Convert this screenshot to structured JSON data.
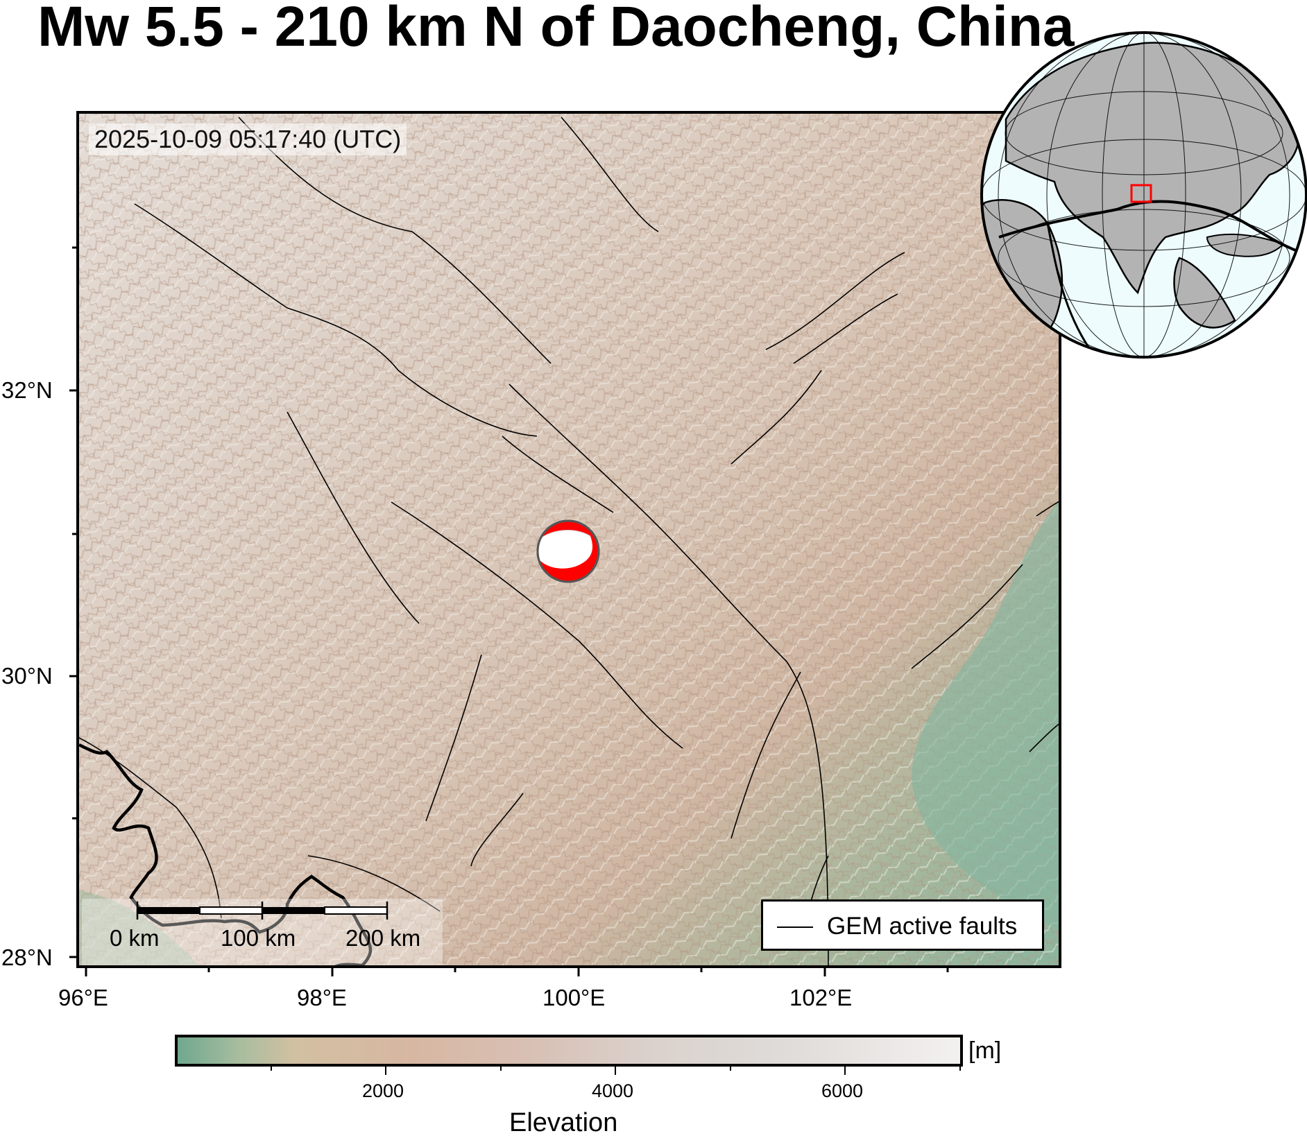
{
  "title": "Mw 5.5 - 210 km N of Daocheng, China",
  "datetime": "2025-10-09 05:17:40 (UTC)",
  "axes": {
    "lat_labels": [
      "32°N",
      "30°N",
      "28°N"
    ],
    "lon_labels": [
      "96°E",
      "98°E",
      "100°E",
      "102°E"
    ]
  },
  "legend": {
    "faults_label": "GEM active faults"
  },
  "scalebar": {
    "labels": [
      "0 km",
      "100 km",
      "200 km"
    ]
  },
  "colorbar": {
    "title": "Elevation",
    "unit": "[m]",
    "ticks": [
      "2000",
      "4000",
      "6000"
    ]
  },
  "colors": {
    "beachball_compressional": "#ff0000",
    "beachball_dilatational": "#ffffff",
    "inset_box": "#ff0000",
    "globe_land": "#b3b3b3",
    "globe_ocean": "#eefcfe",
    "faults": "#000000"
  },
  "event": {
    "magnitude": "Mw 5.5",
    "mechanism_icon": "beachball-icon"
  }
}
